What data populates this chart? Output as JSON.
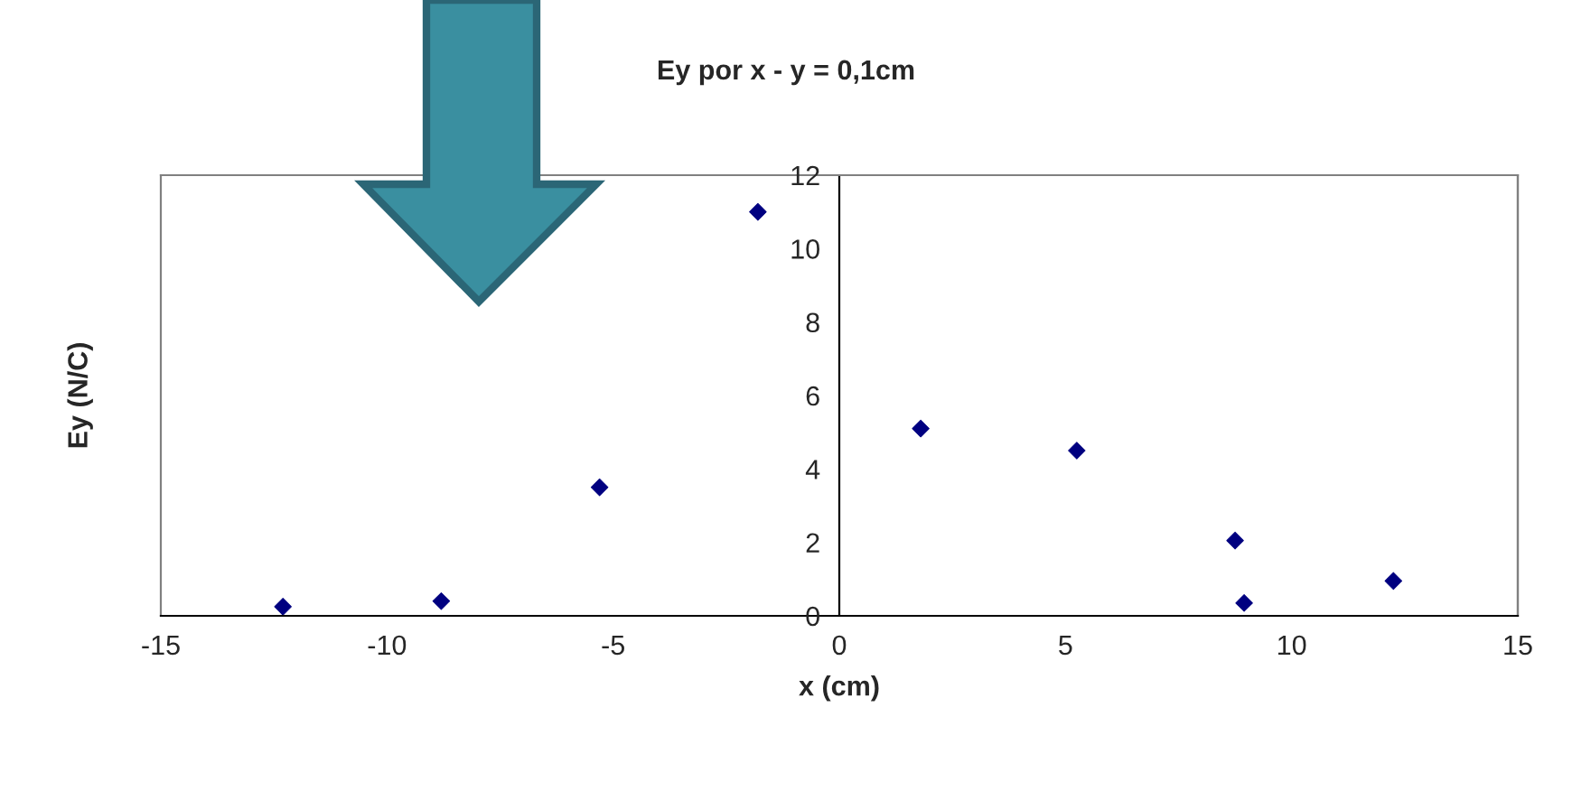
{
  "chart_data": {
    "type": "scatter",
    "title": "Ey por x - y = 0,1cm",
    "xlabel": "x (cm)",
    "ylabel": "Ey (N/C)",
    "x": [
      -12.3,
      -8.8,
      -5.3,
      -1.8,
      1.8,
      5.25,
      8.75,
      8.95,
      12.25
    ],
    "series": [
      {
        "color": "#000080",
        "values": [
          0.25,
          0.4,
          3.5,
          11.0,
          5.1,
          4.5,
          2.05,
          0.35,
          0.95
        ]
      }
    ],
    "xlim": [
      -15,
      15
    ],
    "xticks": [
      -15,
      -10,
      -5,
      0,
      5,
      10,
      15
    ],
    "ylim": [
      0,
      12
    ],
    "yticks": [
      0,
      2,
      4,
      6,
      8,
      10,
      12
    ],
    "marker": "diamond",
    "grid": false,
    "legend": false
  }
}
